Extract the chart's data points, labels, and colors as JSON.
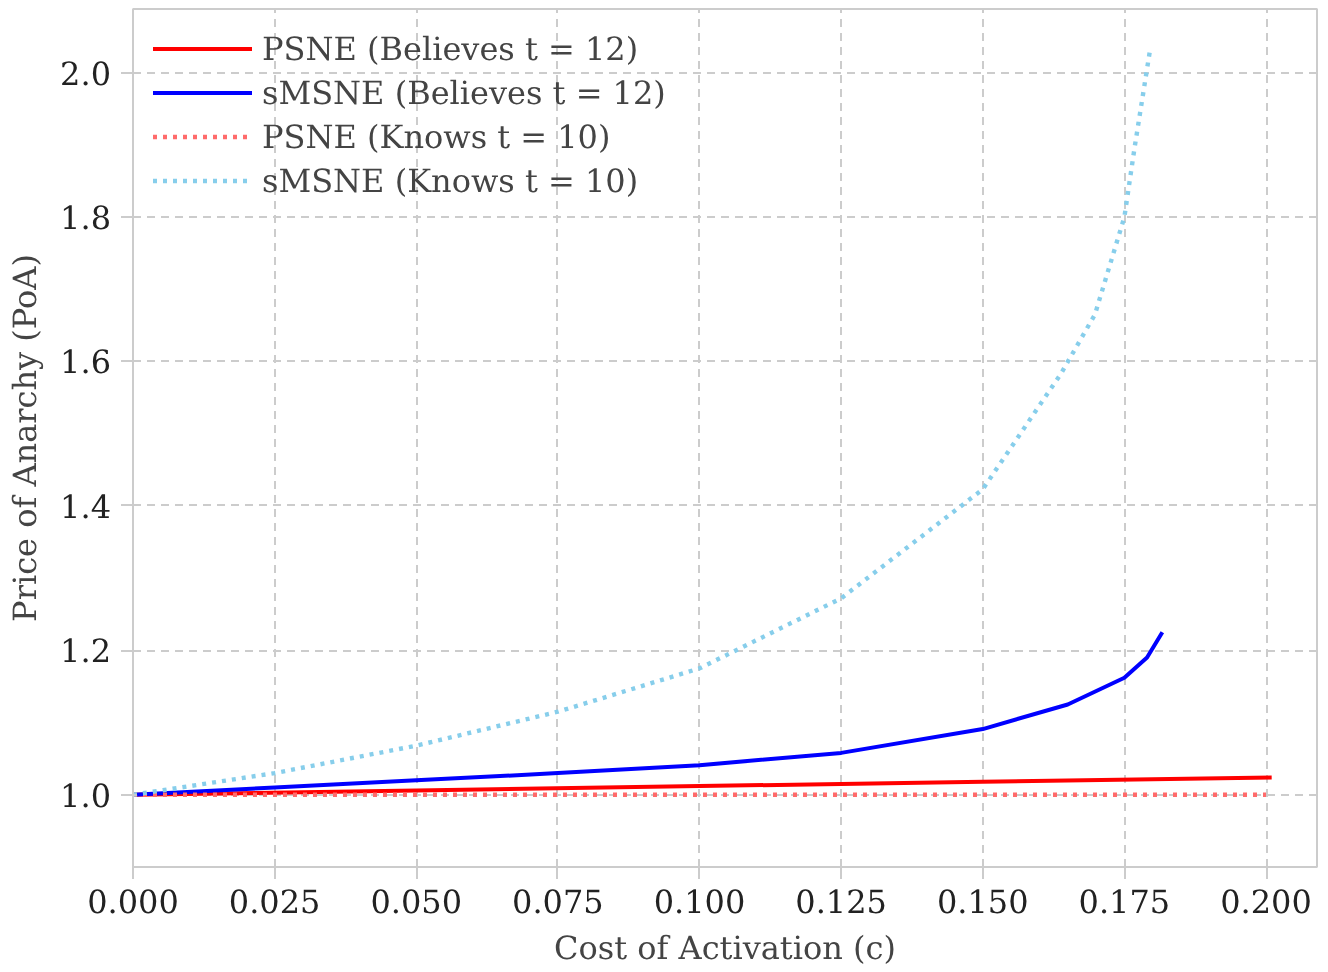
{
  "chart_data": {
    "type": "line",
    "xlabel": "Cost of Activation (c)",
    "ylabel": "Price of Anarchy (PoA)",
    "xlim": [
      0,
      0.209
    ],
    "ylim": [
      0.9,
      2.088
    ],
    "xticks": [
      {
        "value": 0,
        "label": "0.000"
      },
      {
        "value": 0.025,
        "label": "0.025"
      },
      {
        "value": 0.05,
        "label": "0.050"
      },
      {
        "value": 0.075,
        "label": "0.075"
      },
      {
        "value": 0.1,
        "label": "0.100"
      },
      {
        "value": 0.125,
        "label": "0.125"
      },
      {
        "value": 0.15,
        "label": "0.150"
      },
      {
        "value": 0.175,
        "label": "0.175"
      },
      {
        "value": 0.2,
        "label": "0.200"
      }
    ],
    "yticks": [
      {
        "value": 1.0,
        "label": "1.0"
      },
      {
        "value": 1.2,
        "label": "1.2"
      },
      {
        "value": 1.4,
        "label": "1.4"
      },
      {
        "value": 1.6,
        "label": "1.6"
      },
      {
        "value": 1.8,
        "label": "1.8"
      },
      {
        "value": 2.0,
        "label": "2.0"
      }
    ],
    "grid": true,
    "legend": "top left",
    "series": [
      {
        "name": "PSNE (Believes t = 12)",
        "color": "#ff0000",
        "line_style": "solid",
        "x": [
          0,
          0.05,
          0.1,
          0.15,
          0.201
        ],
        "values": [
          1.0,
          1.006,
          1.012,
          1.018,
          1.024
        ]
      },
      {
        "name": "sMSNE (Believes t = 12)",
        "color": "#0000ff",
        "line_style": "solid",
        "x": [
          0,
          0.025,
          0.05,
          0.075,
          0.1,
          0.125,
          0.15,
          0.165,
          0.175,
          0.179,
          0.1817
        ],
        "values": [
          1.0,
          1.01,
          1.02,
          1.03,
          1.041,
          1.058,
          1.091,
          1.125,
          1.162,
          1.19,
          1.225
        ]
      },
      {
        "name": "PSNE (Knows t = 10)",
        "color": "#ff6b6b",
        "line_style": "dotted",
        "x": [
          0,
          0.1,
          0.2
        ],
        "values": [
          1.0,
          1.0,
          1.0
        ]
      },
      {
        "name": "sMSNE (Knows t = 10)",
        "color": "#87ceeb",
        "line_style": "dotted",
        "x": [
          0,
          0.025,
          0.05,
          0.075,
          0.1,
          0.125,
          0.15,
          0.1638,
          0.1698,
          0.175,
          0.1768,
          0.1795
        ],
        "values": [
          1.0,
          1.03,
          1.068,
          1.115,
          1.175,
          1.272,
          1.423,
          1.583,
          1.665,
          1.8,
          1.896,
          2.03
        ]
      }
    ]
  }
}
